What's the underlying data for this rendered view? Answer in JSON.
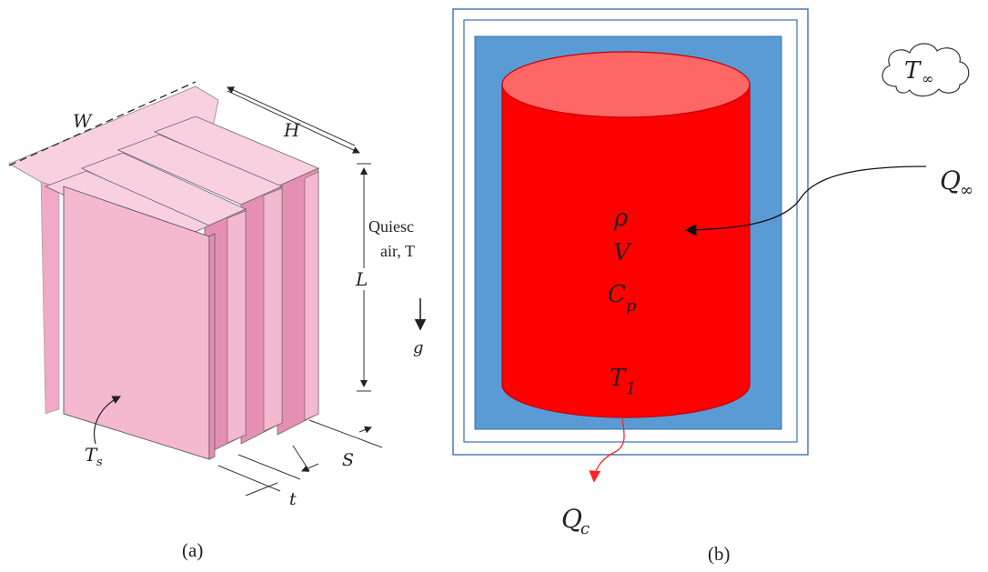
{
  "panel_a": {
    "caption": "(a)",
    "labels": {
      "W": "W",
      "H": "H",
      "L": "L",
      "S": "S",
      "t": "t",
      "Ts": "T",
      "Ts_sub": "s",
      "g": "g",
      "quiescent_line1": "Quiesc",
      "quiescent_line2": "air, T"
    },
    "colors": {
      "fin_face": "#f4b8d0",
      "fin_side": "#e58fb4",
      "fin_top": "#f9d0e0",
      "outline": "#444444"
    }
  },
  "panel_b": {
    "caption": "(b)",
    "cloud_label": "T",
    "cloud_sub": "∞",
    "q_inf": "Q",
    "q_inf_sub": "∞",
    "q_c": "Q",
    "q_c_sub": "c",
    "props": [
      "ρ",
      "V",
      "C",
      "T"
    ],
    "props_sub": [
      "",
      "",
      "p",
      "1"
    ],
    "colors": {
      "insulation": "#5b9bd5",
      "frame": "#4a78b8",
      "cylinder": "#ff0000",
      "cylinder_top": "#ff6666",
      "outflow_arrow": "#ff2222"
    }
  }
}
